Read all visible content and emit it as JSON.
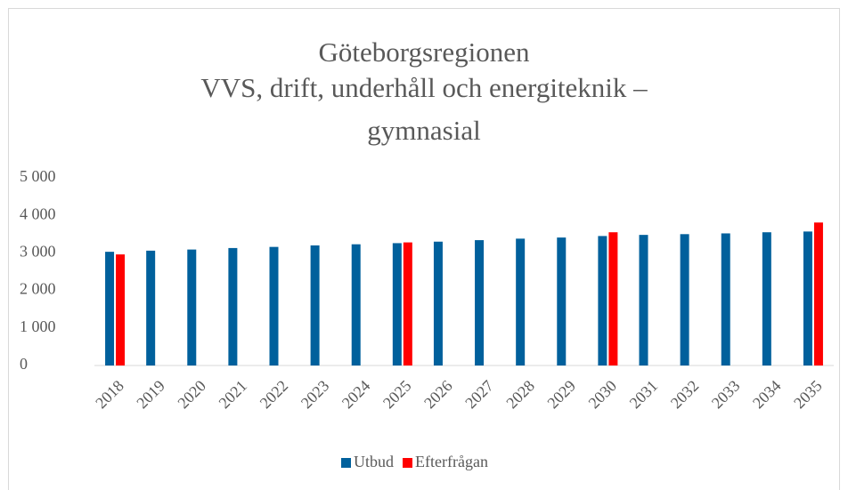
{
  "chart_data": {
    "type": "bar",
    "title": [
      "Göteborgsregionen",
      "VVS, drift, underhåll och energiteknik –",
      "gymnasial"
    ],
    "categories": [
      "2018",
      "2019",
      "2020",
      "2021",
      "2022",
      "2023",
      "2024",
      "2025",
      "2026",
      "2027",
      "2028",
      "2029",
      "2030",
      "2031",
      "2032",
      "2033",
      "2034",
      "2035"
    ],
    "series": [
      {
        "name": "Utbud",
        "color": "#00609c",
        "values": [
          3030,
          3060,
          3090,
          3130,
          3160,
          3200,
          3230,
          3260,
          3300,
          3340,
          3380,
          3410,
          3450,
          3480,
          3500,
          3520,
          3550,
          3570
        ]
      },
      {
        "name": "Efterfrågan",
        "color": "#ff0000",
        "values": [
          2960,
          null,
          null,
          null,
          null,
          null,
          null,
          3280,
          null,
          null,
          null,
          null,
          3550,
          null,
          null,
          null,
          null,
          3810
        ]
      }
    ],
    "ylim": [
      0,
      5000
    ],
    "yticks": [
      0,
      {
        "value": 1000,
        "label": "1 000"
      },
      {
        "value": 2000,
        "label": "2 000"
      },
      {
        "value": 3000,
        "label": "3 000"
      },
      {
        "value": 4000,
        "label": "4 000"
      },
      {
        "value": 5000,
        "label": "5 000"
      }
    ],
    "grid": false,
    "legend": "bottom"
  }
}
